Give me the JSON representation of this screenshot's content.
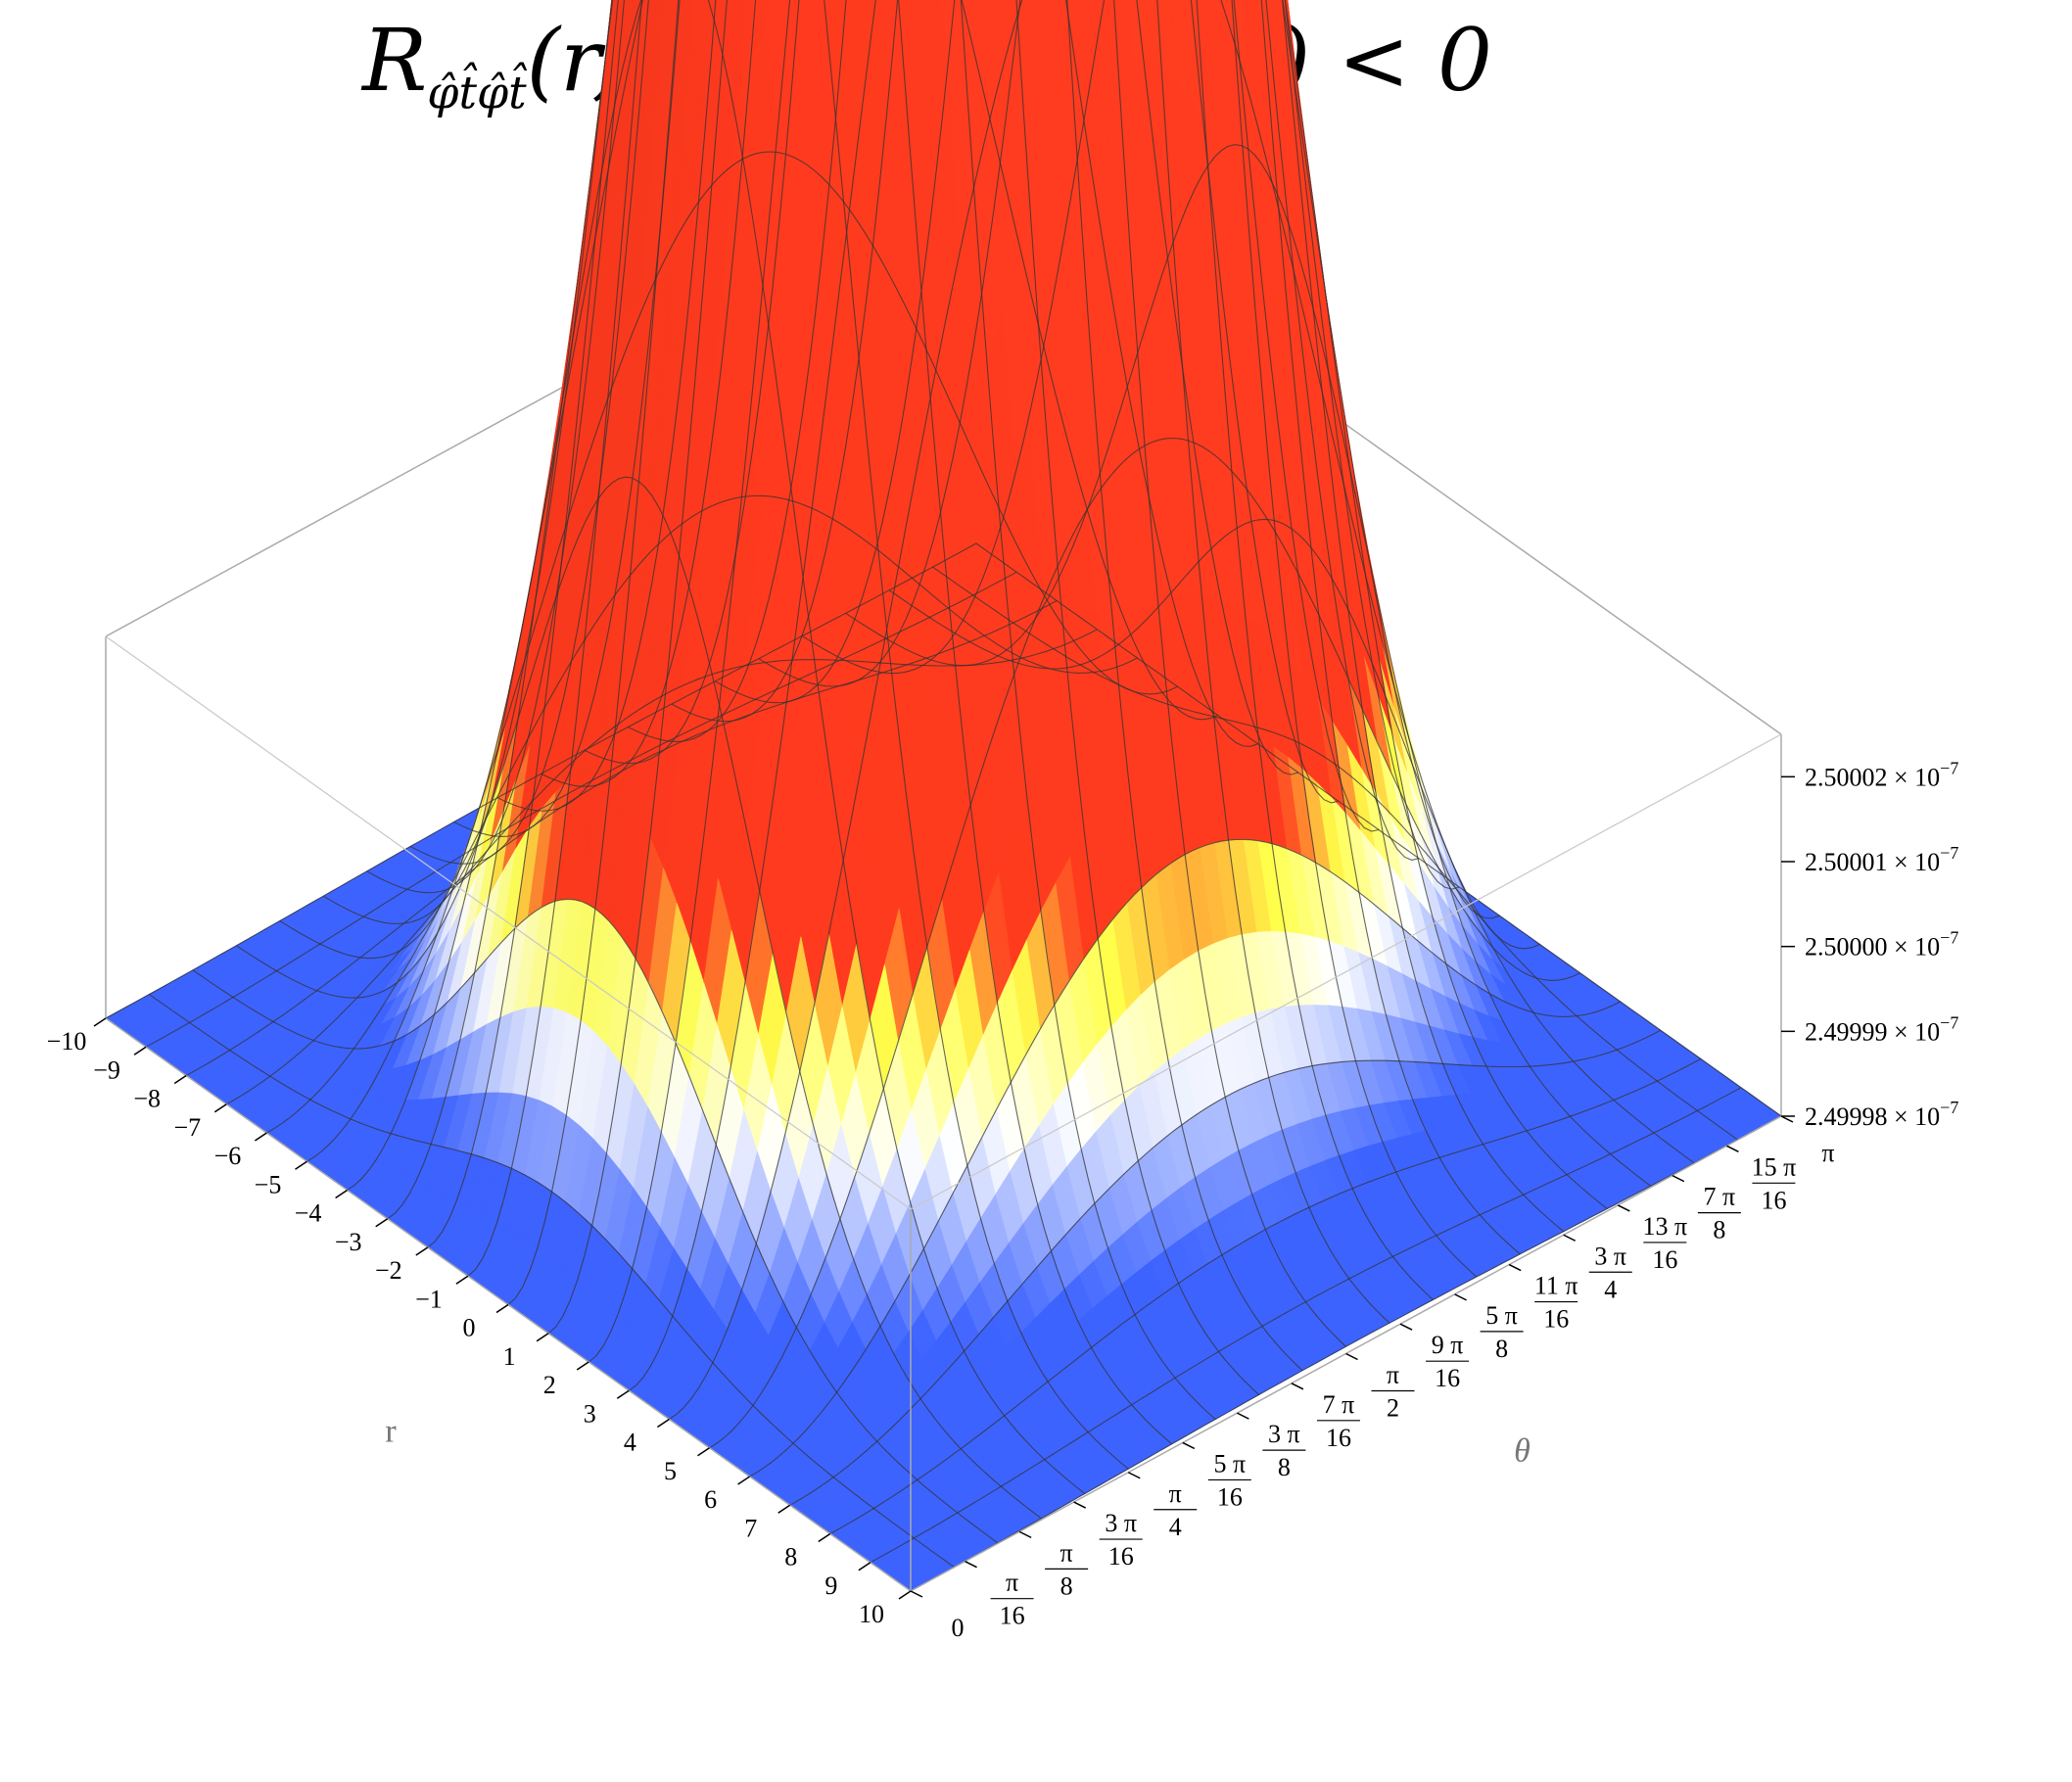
{
  "title": {
    "left_symbol": "R",
    "left_subscript": "φ̂t̂φ̂t̂",
    "left_args": "(r, θ)",
    "right": "k(r, θ) < 0"
  },
  "chart_data": {
    "type": "surface3d",
    "title": "R_{φ̂t̂φ̂t̂}(r, θ)   k(r, θ) < 0",
    "xlabel": "r",
    "ylabel": "θ",
    "zlabel": "",
    "xlim": [
      -10,
      10
    ],
    "ylim": [
      0,
      3.14159
    ],
    "zlim": [
      2.49998e-07,
      2.500025e-07
    ],
    "x_ticks": [
      "-10",
      "-9",
      "-8",
      "-7",
      "-6",
      "-5",
      "-4",
      "-3",
      "-2",
      "-1",
      "0",
      "1",
      "2",
      "3",
      "4",
      "5",
      "6",
      "7",
      "8",
      "9",
      "10"
    ],
    "y_ticks": [
      {
        "num": "0",
        "den": ""
      },
      {
        "num": "π",
        "den": "16"
      },
      {
        "num": "π",
        "den": "8"
      },
      {
        "num": "3 π",
        "den": "16"
      },
      {
        "num": "π",
        "den": "4"
      },
      {
        "num": "5 π",
        "den": "16"
      },
      {
        "num": "3 π",
        "den": "8"
      },
      {
        "num": "7 π",
        "den": "16"
      },
      {
        "num": "π",
        "den": "2"
      },
      {
        "num": "9 π",
        "den": "16"
      },
      {
        "num": "5 π",
        "den": "8"
      },
      {
        "num": "11 π",
        "den": "16"
      },
      {
        "num": "3 π",
        "den": "4"
      },
      {
        "num": "13 π",
        "den": "16"
      },
      {
        "num": "7 π",
        "den": "8"
      },
      {
        "num": "15 π",
        "den": "16"
      },
      {
        "num": "π",
        "den": ""
      }
    ],
    "z_ticks": [
      {
        "value": 2.49998e-07,
        "mantissa": "2.49998",
        "times": "×",
        "base": "10",
        "exp": "−7"
      },
      {
        "value": 2.49999e-07,
        "mantissa": "2.49999",
        "times": "×",
        "base": "10",
        "exp": "−7"
      },
      {
        "value": 2.5e-07,
        "mantissa": "2.50000",
        "times": "×",
        "base": "10",
        "exp": "−7"
      },
      {
        "value": 2.50001e-07,
        "mantissa": "2.50001",
        "times": "×",
        "base": "10",
        "exp": "−7"
      },
      {
        "value": 2.50002e-07,
        "mantissa": "2.50002",
        "times": "×",
        "base": "10",
        "exp": "−7"
      }
    ],
    "surface": {
      "description_of_shape": "z = base + amp * exp(-(r/sigma)^2) * sin^2(theta)",
      "base": 2.49998e-07,
      "amplitude": 4.3e-11,
      "r_width_sigma": 4.0,
      "peak_at": {
        "r": 0,
        "theta": 1.5708
      }
    },
    "mesh_lines": 20,
    "colors": {
      "low": "#3d63ff",
      "mid": "#ffffff",
      "high_mid": "#ffff4a",
      "high": "#ff3a1e",
      "mesh": "#333333",
      "box": "#aaaaaa"
    },
    "grid": false,
    "boxed": true
  }
}
